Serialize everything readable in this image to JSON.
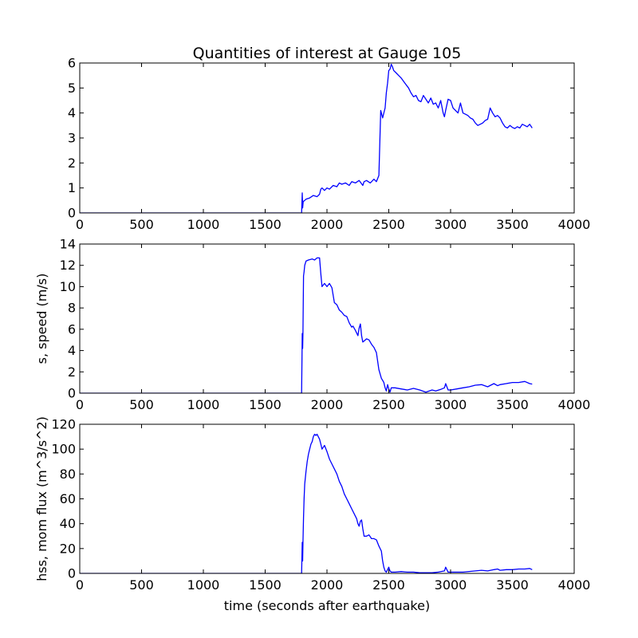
{
  "figure": {
    "title": "Quantities of interest at Gauge 105",
    "xlabel": "time (seconds after earthquake)"
  },
  "chart_data": [
    {
      "type": "line",
      "title": "Quantities of interest at Gauge 105",
      "xlabel": "",
      "ylabel": "",
      "xlim": [
        0,
        4000
      ],
      "ylim": [
        0,
        6
      ],
      "xticks": [
        0,
        500,
        1000,
        1500,
        2000,
        2500,
        3000,
        3500,
        4000
      ],
      "yticks": [
        0,
        1,
        2,
        3,
        4,
        5,
        6
      ],
      "grid": false,
      "line_color": "#0000ff",
      "series": [
        {
          "x": [
            0,
            1795,
            1800,
            1803,
            1808,
            1830,
            1860,
            1890,
            1920,
            1940,
            1950,
            1960,
            1980,
            2000,
            2020,
            2050,
            2080,
            2100,
            2120,
            2150,
            2180,
            2200,
            2230,
            2260,
            2290,
            2300,
            2320,
            2350,
            2380,
            2400,
            2420,
            2435,
            2440,
            2445,
            2450,
            2460,
            2470,
            2480,
            2490,
            2500,
            2510,
            2520,
            2530,
            2540,
            2560,
            2580,
            2600,
            2630,
            2660,
            2680,
            2700,
            2720,
            2740,
            2760,
            2780,
            2800,
            2820,
            2840,
            2860,
            2880,
            2900,
            2920,
            2940,
            2950,
            2960,
            2980,
            3000,
            3020,
            3040,
            3060,
            3080,
            3100,
            3120,
            3140,
            3160,
            3180,
            3200,
            3220,
            3240,
            3260,
            3280,
            3300,
            3320,
            3340,
            3360,
            3380,
            3400,
            3420,
            3440,
            3460,
            3480,
            3500,
            3520,
            3540,
            3560,
            3580,
            3600,
            3620,
            3640,
            3660
          ],
          "y": [
            0,
            0,
            0.8,
            0.2,
            0.45,
            0.55,
            0.6,
            0.7,
            0.65,
            0.75,
            0.95,
            1.0,
            0.9,
            1.0,
            0.95,
            1.1,
            1.05,
            1.2,
            1.15,
            1.2,
            1.1,
            1.25,
            1.2,
            1.3,
            1.1,
            1.25,
            1.3,
            1.2,
            1.35,
            1.25,
            1.5,
            4.1,
            4.0,
            3.9,
            3.8,
            4.0,
            4.2,
            4.8,
            5.2,
            5.7,
            5.75,
            5.95,
            5.85,
            5.7,
            5.6,
            5.5,
            5.4,
            5.2,
            5.0,
            4.8,
            4.65,
            4.7,
            4.5,
            4.45,
            4.7,
            4.55,
            4.4,
            4.6,
            4.35,
            4.4,
            4.2,
            4.5,
            4.0,
            3.85,
            4.1,
            4.55,
            4.5,
            4.2,
            4.1,
            4.0,
            4.4,
            4.0,
            3.95,
            3.9,
            3.8,
            3.75,
            3.6,
            3.5,
            3.55,
            3.6,
            3.7,
            3.75,
            4.2,
            4.0,
            3.85,
            3.9,
            3.8,
            3.6,
            3.45,
            3.4,
            3.5,
            3.42,
            3.38,
            3.45,
            3.4,
            3.55,
            3.5,
            3.45,
            3.55,
            3.4
          ]
        }
      ]
    },
    {
      "type": "line",
      "title": "",
      "xlabel": "",
      "ylabel": "s, speed (m/s)",
      "xlim": [
        0,
        4000
      ],
      "ylim": [
        0,
        14
      ],
      "xticks": [
        0,
        500,
        1000,
        1500,
        2000,
        2500,
        3000,
        3500,
        4000
      ],
      "yticks": [
        0,
        2,
        4,
        6,
        8,
        10,
        12,
        14
      ],
      "grid": false,
      "line_color": "#0000ff",
      "series": [
        {
          "x": [
            0,
            1795,
            1800,
            1803,
            1806,
            1810,
            1815,
            1820,
            1830,
            1850,
            1880,
            1900,
            1920,
            1940,
            1950,
            1960,
            1980,
            2000,
            2020,
            2040,
            2060,
            2080,
            2100,
            2120,
            2140,
            2160,
            2180,
            2200,
            2210,
            2230,
            2250,
            2260,
            2270,
            2280,
            2290,
            2300,
            2320,
            2340,
            2360,
            2380,
            2400,
            2420,
            2440,
            2450,
            2460,
            2470,
            2480,
            2490,
            2500,
            2510,
            2520,
            2550,
            2600,
            2650,
            2700,
            2750,
            2800,
            2850,
            2880,
            2920,
            2950,
            2960,
            2980,
            3000,
            3050,
            3100,
            3150,
            3200,
            3250,
            3300,
            3350,
            3380,
            3400,
            3450,
            3500,
            3550,
            3600,
            3640,
            3660
          ],
          "y": [
            0,
            0,
            5.6,
            4.2,
            5.8,
            11.0,
            11.4,
            12.0,
            12.4,
            12.5,
            12.6,
            12.5,
            12.7,
            12.7,
            11.2,
            10.0,
            10.3,
            10.0,
            10.3,
            9.9,
            8.5,
            8.3,
            7.8,
            7.6,
            7.3,
            7.2,
            6.6,
            6.2,
            6.3,
            5.9,
            5.4,
            6.1,
            6.5,
            5.4,
            4.8,
            4.9,
            5.1,
            5.0,
            4.6,
            4.3,
            3.8,
            2.2,
            1.4,
            1.2,
            1.0,
            0.5,
            0.2,
            0.8,
            0.4,
            0.1,
            0.5,
            0.5,
            0.4,
            0.3,
            0.45,
            0.3,
            0.1,
            0.3,
            0.2,
            0.35,
            0.5,
            0.9,
            0.3,
            0.3,
            0.4,
            0.5,
            0.6,
            0.75,
            0.8,
            0.6,
            0.9,
            0.7,
            0.8,
            0.9,
            1.0,
            1.0,
            1.1,
            0.9,
            0.85
          ]
        }
      ]
    },
    {
      "type": "line",
      "title": "",
      "xlabel": "time (seconds after earthquake)",
      "ylabel": "hss, mom flux (m^3/s^2)",
      "xlim": [
        0,
        4000
      ],
      "ylim": [
        0,
        120
      ],
      "xticks": [
        0,
        500,
        1000,
        1500,
        2000,
        2500,
        3000,
        3500,
        4000
      ],
      "yticks": [
        0,
        20,
        40,
        60,
        80,
        100,
        120
      ],
      "grid": false,
      "line_color": "#0000ff",
      "series": [
        {
          "x": [
            0,
            1795,
            1800,
            1803,
            1806,
            1810,
            1815,
            1820,
            1830,
            1840,
            1850,
            1860,
            1870,
            1880,
            1890,
            1900,
            1910,
            1920,
            1930,
            1940,
            1950,
            1960,
            1980,
            2000,
            2020,
            2040,
            2060,
            2080,
            2100,
            2120,
            2140,
            2160,
            2180,
            2200,
            2220,
            2240,
            2250,
            2260,
            2270,
            2280,
            2290,
            2300,
            2320,
            2340,
            2360,
            2380,
            2400,
            2420,
            2440,
            2450,
            2460,
            2470,
            2480,
            2490,
            2500,
            2510,
            2520,
            2550,
            2600,
            2650,
            2700,
            2750,
            2800,
            2850,
            2900,
            2950,
            2960,
            2980,
            3000,
            3100,
            3200,
            3250,
            3300,
            3350,
            3380,
            3400,
            3450,
            3500,
            3550,
            3600,
            3640,
            3660
          ],
          "y": [
            0,
            0,
            25,
            10,
            25,
            45,
            60,
            72,
            82,
            90,
            96,
            100,
            104,
            106,
            110,
            112,
            111,
            112,
            110,
            108,
            104,
            100,
            103,
            98,
            92,
            88,
            84,
            80,
            74,
            70,
            64,
            60,
            56,
            52,
            48,
            44,
            40,
            38,
            42,
            43,
            36,
            30,
            30,
            31,
            28,
            28,
            27,
            22,
            18,
            10,
            5,
            2,
            1,
            3,
            5,
            2,
            1,
            1,
            1.5,
            1,
            1,
            0.5,
            0.5,
            0.5,
            1,
            2,
            5,
            1,
            1,
            1,
            2,
            2.5,
            2,
            3,
            3.5,
            2.5,
            3,
            3,
            3.5,
            3.5,
            4,
            3
          ]
        }
      ]
    }
  ]
}
